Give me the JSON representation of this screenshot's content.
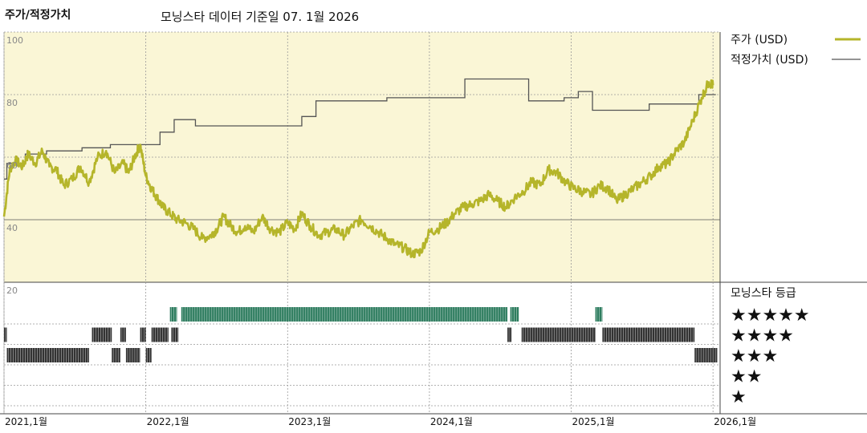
{
  "header": {
    "title": "주가/적정가치",
    "subtitle": "모닝스타 데이터 기준일 07. 1월 2026"
  },
  "legend": {
    "price_label": "주가 (USD)",
    "fair_label": "적정가치 (USD)",
    "rating_title": "모닝스타 등급",
    "stars": [
      "★★★★★",
      "★★★★",
      "★★★",
      "★★",
      "★"
    ]
  },
  "colors": {
    "plot_bg": "#FAF6D6",
    "price": "#B5B52A",
    "fair": "#555555",
    "rating5": "#2E7D5F",
    "rating_other": "#333333"
  },
  "chart_data": [
    {
      "type": "line",
      "xlim": [
        2021.0,
        2026.05
      ],
      "ylim": [
        20,
        100
      ],
      "yticks": [
        40,
        60,
        80,
        100
      ],
      "ytick_labels": [
        "40",
        "60",
        "80",
        "100"
      ],
      "grid": true,
      "legend_position": "right",
      "xticks": [
        2021.0,
        2022.0,
        2023.0,
        2024.0,
        2025.0,
        2026.0
      ],
      "xtick_labels": [
        "2021,1월",
        "2022,1월",
        "2023,1월",
        "2024,1월",
        "2025,1월",
        "2026,1월"
      ],
      "series": [
        {
          "name": "주가 (USD)",
          "x": [
            2021.0,
            2021.04,
            2021.08,
            2021.13,
            2021.17,
            2021.22,
            2021.27,
            2021.32,
            2021.37,
            2021.42,
            2021.48,
            2021.54,
            2021.6,
            2021.66,
            2021.72,
            2021.78,
            2021.84,
            2021.88,
            2021.92,
            2021.96,
            2022.0,
            2022.04,
            2022.08,
            2022.12,
            2022.17,
            2022.22,
            2022.28,
            2022.34,
            2022.4,
            2022.46,
            2022.5,
            2022.55,
            2022.6,
            2022.65,
            2022.7,
            2022.76,
            2022.82,
            2022.88,
            2022.94,
            2023.0,
            2023.05,
            2023.1,
            2023.16,
            2023.22,
            2023.28,
            2023.34,
            2023.4,
            2023.46,
            2023.52,
            2023.58,
            2023.64,
            2023.7,
            2023.76,
            2023.82,
            2023.88,
            2023.94,
            2024.0,
            2024.06,
            2024.12,
            2024.18,
            2024.24,
            2024.3,
            2024.36,
            2024.42,
            2024.48,
            2024.54,
            2024.6,
            2024.66,
            2024.72,
            2024.78,
            2024.84,
            2024.9,
            2024.96,
            2025.02,
            2025.08,
            2025.14,
            2025.2,
            2025.26,
            2025.32,
            2025.38,
            2025.44,
            2025.5,
            2025.56,
            2025.62,
            2025.68,
            2025.74,
            2025.8,
            2025.86,
            2025.92,
            2025.97,
            2026.0
          ],
          "values": [
            41,
            56,
            59,
            57,
            61,
            58,
            62,
            57,
            56,
            51,
            53,
            57,
            52,
            60,
            62,
            55,
            58,
            55,
            60,
            64,
            54,
            50,
            47,
            44,
            42,
            40,
            39,
            37,
            34,
            35,
            37,
            41,
            38,
            36,
            38,
            36,
            41,
            37,
            36,
            39,
            37,
            42,
            38,
            35,
            36,
            37,
            35,
            38,
            40,
            38,
            36,
            34,
            32,
            31,
            29,
            30,
            36,
            37,
            39,
            42,
            44,
            45,
            46,
            48,
            46,
            44,
            47,
            49,
            52,
            51,
            56,
            55,
            52,
            50,
            49,
            48,
            51,
            50,
            46,
            48,
            50,
            52,
            54,
            57,
            58,
            62,
            65,
            72,
            79,
            84,
            83
          ]
        },
        {
          "name": "적정가치 (USD)",
          "step": true,
          "x": [
            2021.0,
            2021.02,
            2021.15,
            2021.3,
            2021.55,
            2021.75,
            2022.1,
            2022.2,
            2022.35,
            2022.6,
            2022.85,
            2023.1,
            2023.2,
            2023.45,
            2023.7,
            2024.1,
            2024.25,
            2024.55,
            2024.7,
            2024.9,
            2024.95,
            2025.05,
            2025.15,
            2025.35,
            2025.55,
            2025.7,
            2025.9,
            2026.0
          ],
          "values": [
            53,
            58,
            61,
            62,
            63,
            64,
            68,
            72,
            70,
            70,
            70,
            73,
            78,
            78,
            79,
            79,
            85,
            85,
            78,
            78,
            79,
            81,
            75,
            75,
            77,
            77,
            80,
            80
          ]
        }
      ]
    },
    {
      "type": "heatmap",
      "title": "모닝스타 등급",
      "levels": [
        5,
        4,
        3,
        2,
        1
      ],
      "xlim": [
        2021.0,
        2026.05
      ],
      "periods": [
        {
          "start": 2021.0,
          "end": 2021.02,
          "rating": 4
        },
        {
          "start": 2021.02,
          "end": 2021.6,
          "rating": 3
        },
        {
          "start": 2021.62,
          "end": 2021.76,
          "rating": 4
        },
        {
          "start": 2021.76,
          "end": 2021.82,
          "rating": 3
        },
        {
          "start": 2021.82,
          "end": 2021.86,
          "rating": 4
        },
        {
          "start": 2021.86,
          "end": 2021.96,
          "rating": 3
        },
        {
          "start": 2021.96,
          "end": 2022.0,
          "rating": 4
        },
        {
          "start": 2022.0,
          "end": 2022.04,
          "rating": 3
        },
        {
          "start": 2022.04,
          "end": 2022.16,
          "rating": 4
        },
        {
          "start": 2022.18,
          "end": 2022.23,
          "rating": 4
        },
        {
          "start": 2022.17,
          "end": 2022.22,
          "rating": 5
        },
        {
          "start": 2022.25,
          "end": 2024.55,
          "rating": 5
        },
        {
          "start": 2024.57,
          "end": 2024.63,
          "rating": 5
        },
        {
          "start": 2024.55,
          "end": 2024.58,
          "rating": 4
        },
        {
          "start": 2024.65,
          "end": 2025.17,
          "rating": 4
        },
        {
          "start": 2025.17,
          "end": 2025.22,
          "rating": 5
        },
        {
          "start": 2025.22,
          "end": 2025.87,
          "rating": 4
        },
        {
          "start": 2025.87,
          "end": 2026.03,
          "rating": 3
        }
      ]
    }
  ]
}
